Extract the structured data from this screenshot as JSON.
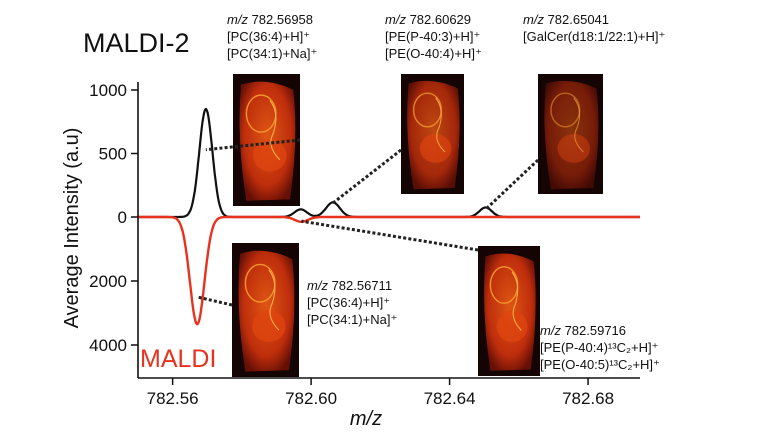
{
  "chart_data": {
    "type": "line",
    "title_top": "MALDI-2",
    "title_bottom": "MALDI",
    "xlabel": "m/z",
    "ylabel": "Average Intensity (a.u)",
    "xlim": [
      782.55,
      782.695
    ],
    "x_ticks": [
      "782.56",
      "782.60",
      "782.64",
      "782.68"
    ],
    "x_tick_values": [
      782.56,
      782.6,
      782.64,
      782.68
    ],
    "y_ticks_top": [
      "1000",
      "500",
      "0"
    ],
    "y_tick_values_top": [
      1000,
      500,
      0
    ],
    "y_ticks_bottom": [
      "2000",
      "4000"
    ],
    "y_tick_values_bottom": [
      2000,
      4000
    ],
    "ylim_top": [
      0,
      1000
    ],
    "ylim_bottom": [
      0,
      4000
    ],
    "colors": {
      "maldi2": "#111111",
      "maldi": "#e8321e",
      "image_bg": "#140404",
      "image_tissue": "#c8300c"
    },
    "series": [
      {
        "name": "MALDI-2",
        "direction": "up",
        "peaks": [
          {
            "mz": 782.5696,
            "height": 850,
            "width": 0.0019
          },
          {
            "mz": 782.597,
            "height": 60,
            "width": 0.0018
          },
          {
            "mz": 782.6063,
            "height": 115,
            "width": 0.002
          },
          {
            "mz": 782.6504,
            "height": 75,
            "width": 0.0018
          }
        ]
      },
      {
        "name": "MALDI",
        "direction": "down",
        "peaks": [
          {
            "mz": 782.5671,
            "height": 3350,
            "width": 0.0021
          },
          {
            "mz": 782.5972,
            "height": 150,
            "width": 0.0019
          }
        ]
      }
    ],
    "annotations": [
      {
        "mz_label": "m/z",
        "mz_value": " 782.56958",
        "lines": [
          "[PC(36:4)+H]⁺",
          "[PC(34:1)+Na]⁺"
        ],
        "target_mz": 782.5696,
        "target_y": 530,
        "side": "top"
      },
      {
        "mz_label": "m/z",
        "mz_value": " 782.60629",
        "lines": [
          "[PE(P-40:3)+H]⁺",
          "[PE(O-40:4)+H]⁺"
        ],
        "target_mz": 782.6063,
        "target_y": 110,
        "side": "top"
      },
      {
        "mz_label": "m/z",
        "mz_value": " 782.65041",
        "lines": [
          "[GalCer(d18:1/22:1)+H]⁺"
        ],
        "target_mz": 782.6504,
        "target_y": 60,
        "side": "top"
      },
      {
        "mz_label": "m/z",
        "mz_value": " 782.56711",
        "lines": [
          "[PC(36:4)+H]⁺",
          "[PC(34:1)+Na]⁺"
        ],
        "target_mz": 782.5671,
        "target_y": 2500,
        "side": "bottom"
      },
      {
        "mz_label": "m/z",
        "mz_value": " 782.59716",
        "lines": [
          "[PE(P-40:4)¹³C₂+H]⁺",
          "[PE(O-40:5)¹³C₂+H]⁺"
        ],
        "target_mz": 782.5972,
        "target_y": 130,
        "side": "bottom"
      }
    ]
  }
}
